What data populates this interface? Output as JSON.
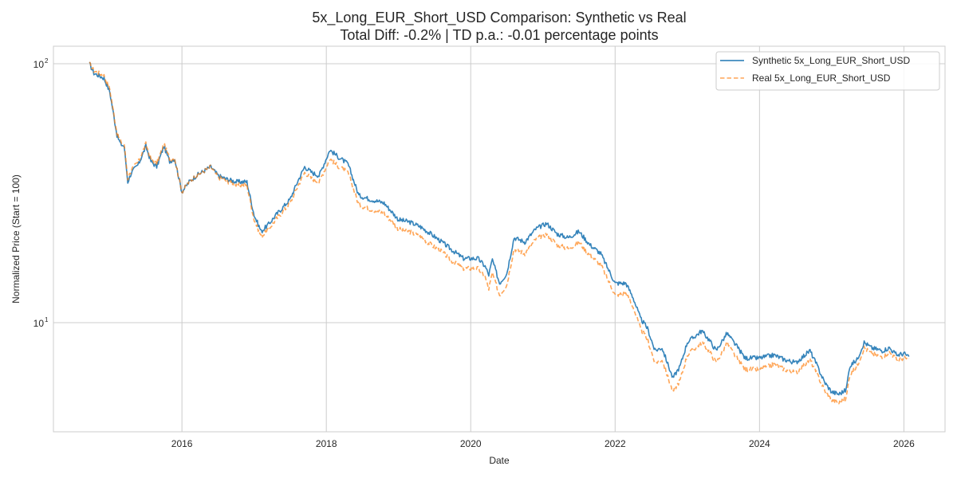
{
  "chart_data": {
    "type": "line",
    "title": "5x_Long_EUR_Short_USD Comparison: Synthetic vs Real",
    "subtitle": "Total Diff: -0.2% | TD p.a.: -0.01 percentage points",
    "xlabel": "Date",
    "ylabel": "Normalized Price (Start = 100)",
    "yscale": "log",
    "xlim": [
      2014.22,
      2026.57
    ],
    "ylim": [
      3.79,
      116.9
    ],
    "x_ticks": [
      2016,
      2018,
      2020,
      2022,
      2024,
      2026
    ],
    "x_tick_labels": [
      "2016",
      "2018",
      "2020",
      "2022",
      "2024",
      "2026"
    ],
    "y_ticks": [
      10,
      100
    ],
    "y_tick_labels": [
      {
        "base": "10",
        "exp": "1"
      },
      {
        "base": "10",
        "exp": "2"
      }
    ],
    "grid": true,
    "legend_position": "top-right",
    "colors": {
      "synthetic": "#1f77b4",
      "real": "#ff7f0e",
      "grid": "#cccccc",
      "text": "#262626"
    },
    "series": [
      {
        "name": "Synthetic 5x_Long_EUR_Short_USD",
        "style": "solid",
        "x": [
          2014.72,
          2014.78,
          2014.85,
          2014.92,
          2015.0,
          2015.06,
          2015.1,
          2015.15,
          2015.2,
          2015.25,
          2015.3,
          2015.4,
          2015.5,
          2015.57,
          2015.65,
          2015.75,
          2015.83,
          2015.9,
          2016.0,
          2016.1,
          2016.2,
          2016.4,
          2016.5,
          2016.6,
          2016.75,
          2016.9,
          2017.0,
          2017.1,
          2017.2,
          2017.3,
          2017.5,
          2017.6,
          2017.7,
          2017.8,
          2017.9,
          2018.05,
          2018.15,
          2018.3,
          2018.45,
          2018.6,
          2018.8,
          2019.0,
          2019.15,
          2019.3,
          2019.45,
          2019.6,
          2019.75,
          2019.9,
          2020.1,
          2020.2,
          2020.25,
          2020.3,
          2020.4,
          2020.5,
          2020.6,
          2020.75,
          2020.9,
          2021.05,
          2021.2,
          2021.35,
          2021.5,
          2021.65,
          2021.8,
          2022.0,
          2022.15,
          2022.25,
          2022.35,
          2022.45,
          2022.55,
          2022.65,
          2022.8,
          2022.9,
          2023.0,
          2023.2,
          2023.3,
          2023.4,
          2023.55,
          2023.7,
          2023.8,
          2024.0,
          2024.2,
          2024.35,
          2024.5,
          2024.7,
          2024.8,
          2024.9,
          2025.0,
          2025.1,
          2025.2,
          2025.25,
          2025.35,
          2025.45,
          2025.55,
          2025.7,
          2025.8,
          2025.9,
          2026.0,
          2026.07
        ],
        "values": [
          100,
          92,
          90,
          88,
          78,
          62,
          53,
          49,
          48,
          35,
          38,
          41,
          48,
          42,
          40,
          48,
          42,
          43,
          32,
          35,
          37,
          40,
          37,
          36,
          35,
          35,
          26,
          22.5,
          24,
          26,
          30,
          35,
          40,
          38,
          37,
          46.5,
          44,
          41,
          31,
          30,
          29,
          25,
          24.5,
          23.5,
          22,
          20.5,
          19,
          17.7,
          17.7,
          16.5,
          15.3,
          17.5,
          14.2,
          15.5,
          21.3,
          20.5,
          23,
          24.2,
          22,
          21.3,
          22.5,
          20,
          18.5,
          14.2,
          14.2,
          12.5,
          10.4,
          9.5,
          7.8,
          8,
          6.1,
          6.8,
          8.4,
          9.3,
          8.6,
          7.8,
          9.1,
          8.0,
          7.3,
          7.3,
          7.5,
          7.2,
          7.0,
          7.8,
          6.8,
          5.9,
          5.4,
          5.3,
          5.5,
          6.8,
          7.2,
          8.4,
          8.0,
          7.8,
          8.0,
          7.5,
          7.6,
          7.4
        ]
      },
      {
        "name": "Real 5x_Long_EUR_Short_USD",
        "style": "dashed",
        "x": [
          2014.72,
          2014.78,
          2014.85,
          2014.92,
          2015.0,
          2015.06,
          2015.1,
          2015.15,
          2015.2,
          2015.25,
          2015.3,
          2015.4,
          2015.5,
          2015.57,
          2015.65,
          2015.75,
          2015.83,
          2015.9,
          2016.0,
          2016.1,
          2016.2,
          2016.4,
          2016.5,
          2016.6,
          2016.75,
          2016.9,
          2017.0,
          2017.1,
          2017.2,
          2017.3,
          2017.5,
          2017.6,
          2017.7,
          2017.8,
          2017.9,
          2018.05,
          2018.15,
          2018.3,
          2018.45,
          2018.6,
          2018.8,
          2019.0,
          2019.15,
          2019.3,
          2019.45,
          2019.6,
          2019.75,
          2019.9,
          2020.1,
          2020.2,
          2020.25,
          2020.3,
          2020.4,
          2020.5,
          2020.6,
          2020.75,
          2020.9,
          2021.05,
          2021.2,
          2021.35,
          2021.5,
          2021.65,
          2021.8,
          2022.0,
          2022.15,
          2022.25,
          2022.35,
          2022.45,
          2022.55,
          2022.65,
          2022.8,
          2022.9,
          2023.0,
          2023.2,
          2023.3,
          2023.4,
          2023.55,
          2023.7,
          2023.8,
          2024.0,
          2024.2,
          2024.35,
          2024.5,
          2024.7,
          2024.8,
          2024.9,
          2025.0,
          2025.1,
          2025.2,
          2025.25,
          2025.35,
          2025.45,
          2025.55,
          2025.7,
          2025.8,
          2025.9,
          2026.0,
          2026.07
        ],
        "values": [
          100,
          94,
          92,
          90,
          80,
          63,
          54,
          50,
          49,
          36,
          39,
          42,
          49,
          43,
          41,
          49,
          43,
          43,
          32,
          35,
          37,
          40,
          36.5,
          35.5,
          34,
          34,
          25,
          21.5,
          23,
          25,
          29,
          33.5,
          38,
          36,
          35,
          43,
          40.5,
          38,
          28.5,
          27.5,
          26.5,
          23,
          22.5,
          21.5,
          20,
          18.8,
          17.2,
          16.2,
          16.2,
          15,
          13.5,
          15.5,
          12.8,
          14,
          19.3,
          18.5,
          21,
          22,
          20,
          19.3,
          20.5,
          18.2,
          16.8,
          12.8,
          13,
          11.5,
          9.5,
          8.6,
          7,
          7.2,
          5.4,
          6.0,
          7.5,
          8.4,
          7.8,
          7.0,
          8.3,
          7.2,
          6.6,
          6.6,
          6.9,
          6.6,
          6.4,
          7.2,
          6.3,
          5.5,
          5.0,
          4.9,
          5.1,
          6.3,
          6.8,
          8.0,
          7.6,
          7.4,
          7.7,
          7.2,
          7.3,
          7.25
        ]
      }
    ]
  }
}
